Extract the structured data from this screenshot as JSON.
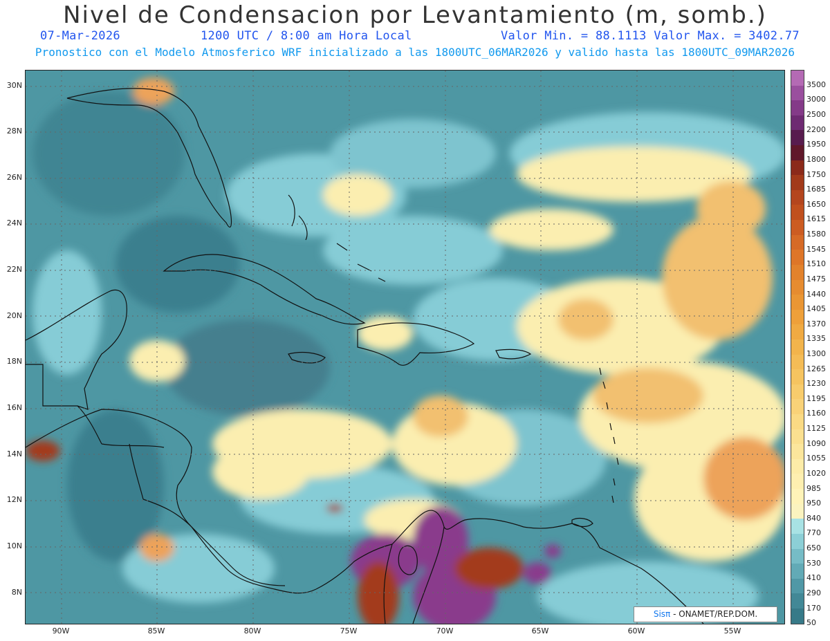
{
  "title": "Nivel de Condensacion por Levantamiento (m, somb.)",
  "date": "07-Mar-2026",
  "time": "1200 UTC / 8:00 am Hora Local",
  "minmax": "Valor Min. = 88.1113  Valor Max. = 3402.77",
  "forecast": "Pronostico con el Modelo Atmosferico WRF inicializado a las 1800UTC_06MAR2026 y valido hasta las  1800UTC_09MAR2026",
  "credit": {
    "sis": "Sisπ",
    "org": " - ONAMET/REP.DOM."
  },
  "lat_labels": [
    "30N",
    "28N",
    "26N",
    "24N",
    "22N",
    "20N",
    "18N",
    "16N",
    "14N",
    "12N",
    "10N",
    "8N"
  ],
  "lon_labels": [
    "90W",
    "85W",
    "80W",
    "75W",
    "70W",
    "65W",
    "60W",
    "55W"
  ],
  "legend": {
    "labels": [
      "3500",
      "3000",
      "2500",
      "2200",
      "1950",
      "1800",
      "1750",
      "1685",
      "1650",
      "1615",
      "1580",
      "1545",
      "1510",
      "1475",
      "1440",
      "1405",
      "1370",
      "1335",
      "1300",
      "1265",
      "1230",
      "1195",
      "1160",
      "1125",
      "1090",
      "1055",
      "1020",
      "985",
      "950",
      "840",
      "770",
      "650",
      "530",
      "410",
      "290",
      "170",
      "50"
    ],
    "colors": [
      "#b46ab4",
      "#9a4f9e",
      "#843a88",
      "#6e2a72",
      "#581c4e",
      "#60182a",
      "#8b2a1a",
      "#a23a1a",
      "#b4461e",
      "#c0501e",
      "#cc5c22",
      "#d66a26",
      "#de7628",
      "#e2822c",
      "#e68c30",
      "#ea9634",
      "#eea03a",
      "#f0aa42",
      "#f2b44c",
      "#f4bc56",
      "#f6c460",
      "#f8cc6c",
      "#f9d278",
      "#fada84",
      "#fbe090",
      "#fce69c",
      "#fdeca8",
      "#feefb0",
      "#fff3b8",
      "#fbf3bf",
      "#a8e2e4",
      "#8ccfd6",
      "#76bcc6",
      "#62aab6",
      "#5098a6",
      "#428896",
      "#377a88"
    ]
  },
  "colors": {
    "ocean_base": "#4e97a3",
    "light_cyan": "#8ed4dc",
    "pale_yellow": "#fbeeb0",
    "orange": "#eda35a",
    "purple": "#8a3a8c",
    "title_color": "#333333",
    "subtitle_color": "#2255ee",
    "forecast_color": "#1199ee"
  }
}
